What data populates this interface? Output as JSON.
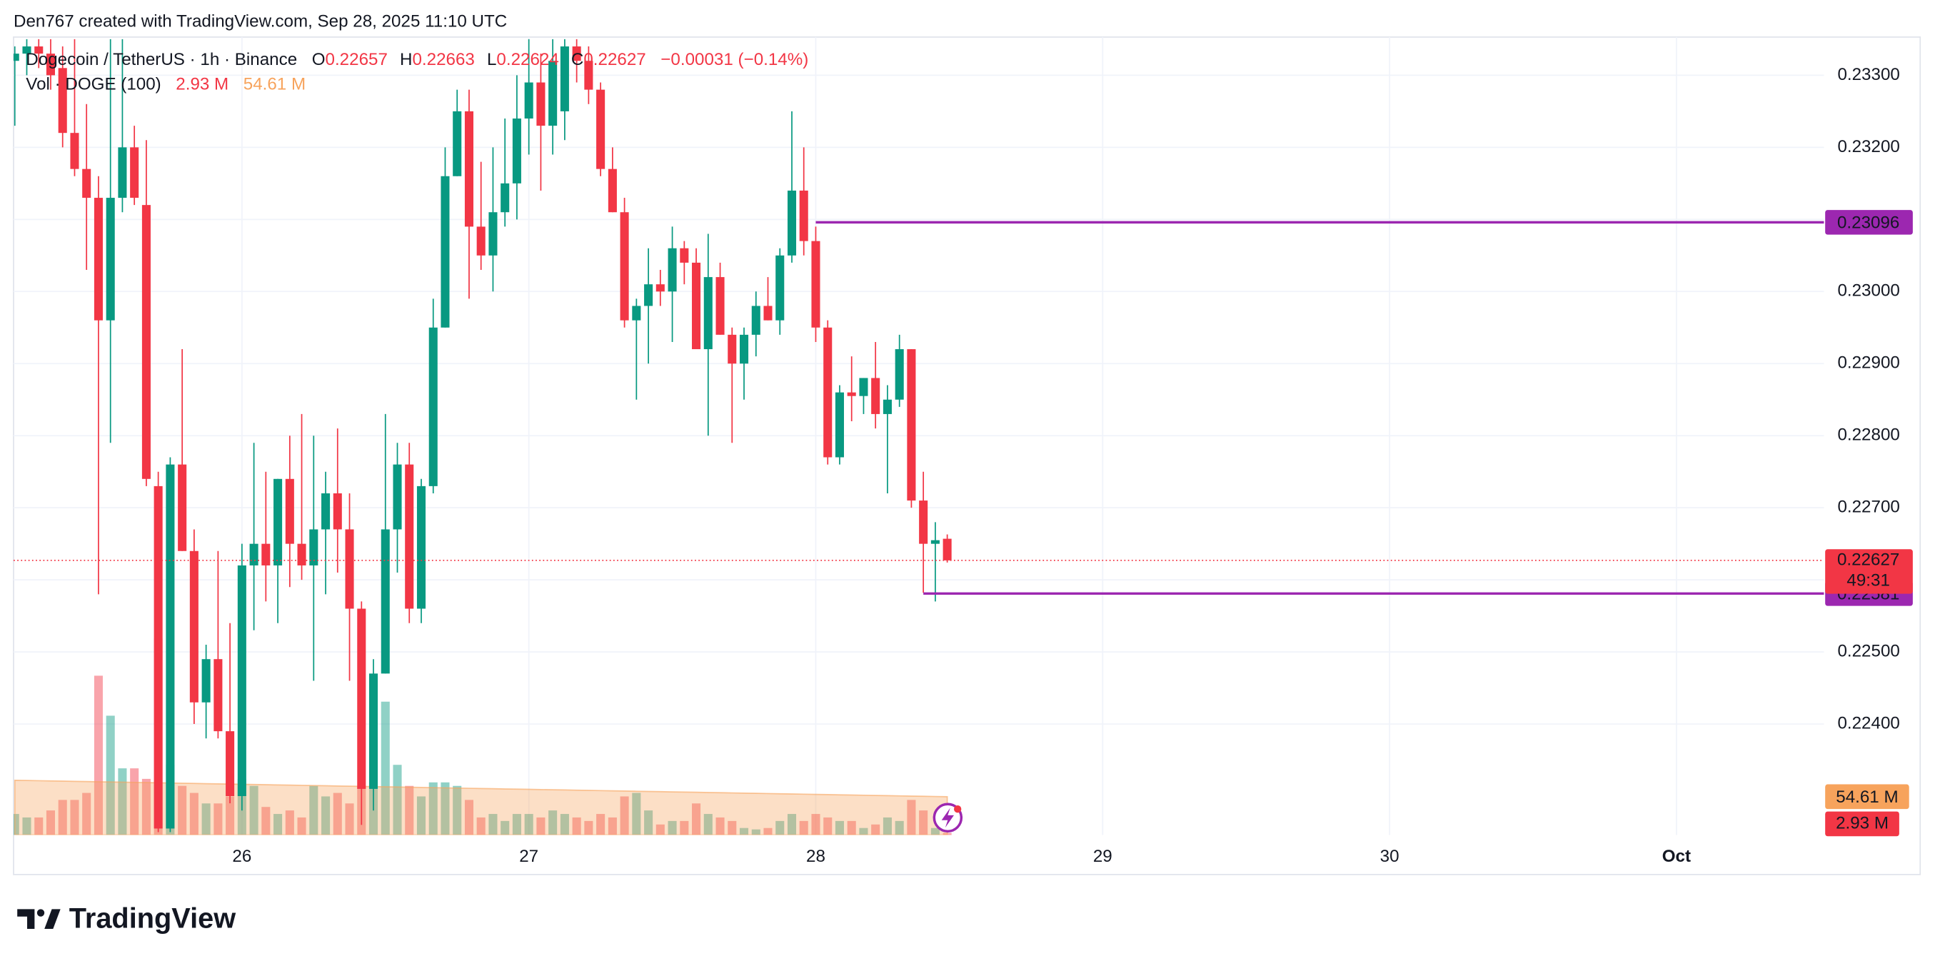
{
  "chart_data": {
    "type": "candlestick",
    "attribution": "Den767 created with TradingView.com, Sep 28, 2025 11:10 UTC",
    "title": "Dogecoin / TetherUS · 1h · Binance",
    "brand": "TradingView",
    "ohlc_labels": [
      "O",
      "H",
      "L",
      "C"
    ],
    "change": "−0.00031 (−0.14%)",
    "countdown": "49:31",
    "x": [
      25.2083,
      25.25,
      25.2917,
      25.3333,
      25.375,
      25.4167,
      25.4583,
      25.5,
      25.5417,
      25.5833,
      25.625,
      25.6667,
      25.7083,
      25.75,
      25.7917,
      25.8333,
      25.875,
      25.9167,
      25.9583,
      26,
      26.0417,
      26.0833,
      26.125,
      26.1667,
      26.2083,
      26.25,
      26.2917,
      26.3333,
      26.375,
      26.4167,
      26.4583,
      26.5,
      26.5417,
      26.5833,
      26.625,
      26.6667,
      26.7083,
      26.75,
      26.7917,
      26.8333,
      26.875,
      26.9167,
      26.9583,
      27,
      27.0417,
      27.0833,
      27.125,
      27.1667,
      27.2083,
      27.25,
      27.2917,
      27.3333,
      27.375,
      27.4167,
      27.4583,
      27.5,
      27.5417,
      27.5833,
      27.625,
      27.6667,
      27.7083,
      27.75,
      27.7917,
      27.8333,
      27.875,
      27.9167,
      27.9583,
      28,
      28.0417,
      28.0833,
      28.125,
      28.1667,
      28.2083,
      28.25,
      28.2917,
      28.3333,
      28.375,
      28.4167,
      28.4583
    ],
    "open": [
      0.2332,
      0.2333,
      0.2334,
      0.2333,
      0.2331,
      0.2322,
      0.2317,
      0.2313,
      0.2296,
      0.2313,
      0.232,
      0.2312,
      0.2273,
      0.22255,
      0.2276,
      0.2264,
      0.2243,
      0.2249,
      0.2239,
      0.223,
      0.2262,
      0.2265,
      0.2262,
      0.2274,
      0.2265,
      0.2262,
      0.2267,
      0.2272,
      0.2267,
      0.2256,
      0.2231,
      0.2247,
      0.2267,
      0.2276,
      0.2256,
      0.2273,
      0.2295,
      0.2316,
      0.2325,
      0.2309,
      0.2305,
      0.2311,
      0.2315,
      0.2324,
      0.2329,
      0.2323,
      0.2325,
      0.2334,
      0.2332,
      0.2328,
      0.2317,
      0.2311,
      0.2296,
      0.2298,
      0.2301,
      0.23,
      0.2306,
      0.2304,
      0.2292,
      0.2302,
      0.2294,
      0.229,
      0.2294,
      0.2298,
      0.2296,
      0.2305,
      0.2314,
      0.2307,
      0.2295,
      0.2277,
      0.2286,
      0.22855,
      0.2288,
      0.2283,
      0.2285,
      0.2292,
      0.2271,
      0.2265,
      0.22657
    ],
    "high": [
      0.2334,
      0.2335,
      0.2335,
      0.2335,
      0.2334,
      0.2335,
      0.2326,
      0.2316,
      0.2335,
      0.2335,
      0.2323,
      0.2321,
      0.2275,
      0.2277,
      0.2292,
      0.2267,
      0.2251,
      0.2264,
      0.2254,
      0.2265,
      0.2279,
      0.2275,
      0.2274,
      0.228,
      0.2283,
      0.228,
      0.2275,
      0.2281,
      0.2272,
      0.2257,
      0.2249,
      0.2283,
      0.2279,
      0.2279,
      0.2274,
      0.2299,
      0.232,
      0.2328,
      0.2328,
      0.2318,
      0.232,
      0.2324,
      0.233,
      0.2335,
      0.2333,
      0.2335,
      0.2335,
      0.2335,
      0.2334,
      0.2329,
      0.232,
      0.2313,
      0.2299,
      0.2306,
      0.2303,
      0.2309,
      0.2307,
      0.2306,
      0.2308,
      0.2304,
      0.2295,
      0.2295,
      0.23,
      0.2302,
      0.2306,
      0.2325,
      0.232,
      0.2309,
      0.2296,
      0.2287,
      0.2291,
      0.2288,
      0.2293,
      0.2287,
      0.2294,
      0.2292,
      0.2275,
      0.2268,
      0.22663
    ],
    "low": [
      0.2323,
      0.233,
      0.2331,
      0.2328,
      0.232,
      0.2316,
      0.2303,
      0.2258,
      0.2279,
      0.2311,
      0.2312,
      0.2273,
      0.2225,
      0.2225,
      0.2264,
      0.224,
      0.2238,
      0.2238,
      0.2229,
      0.2228,
      0.2253,
      0.2257,
      0.2254,
      0.2259,
      0.226,
      0.2246,
      0.2258,
      0.2261,
      0.2246,
      0.2226,
      0.2228,
      0.2247,
      0.2261,
      0.2254,
      0.2254,
      0.2272,
      0.2295,
      0.2316,
      0.2299,
      0.2303,
      0.23,
      0.2309,
      0.231,
      0.2319,
      0.2314,
      0.2319,
      0.2321,
      0.2329,
      0.2326,
      0.2316,
      0.2311,
      0.2295,
      0.2285,
      0.229,
      0.2298,
      0.2293,
      0.2301,
      0.2292,
      0.228,
      0.2294,
      0.2279,
      0.2285,
      0.2291,
      0.2296,
      0.2294,
      0.2304,
      0.2305,
      0.2293,
      0.2276,
      0.2276,
      0.2282,
      0.2283,
      0.2281,
      0.2272,
      0.2284,
      0.227,
      0.22582,
      0.2257,
      0.22624
    ],
    "close": [
      0.2333,
      0.2334,
      0.2333,
      0.233,
      0.2322,
      0.2317,
      0.2313,
      0.2296,
      0.2313,
      0.232,
      0.2313,
      0.2274,
      0.22255,
      0.2276,
      0.2264,
      0.2243,
      0.2249,
      0.2239,
      0.223,
      0.2262,
      0.2265,
      0.2262,
      0.2274,
      0.2265,
      0.2262,
      0.2267,
      0.2272,
      0.2267,
      0.2256,
      0.2231,
      0.2247,
      0.2267,
      0.2276,
      0.2256,
      0.2273,
      0.2295,
      0.2316,
      0.2325,
      0.2309,
      0.2305,
      0.2311,
      0.2315,
      0.2324,
      0.2329,
      0.2323,
      0.2332,
      0.2334,
      0.2332,
      0.2328,
      0.2317,
      0.2311,
      0.2296,
      0.2298,
      0.2301,
      0.23,
      0.2306,
      0.2304,
      0.2292,
      0.2302,
      0.2294,
      0.229,
      0.2294,
      0.2298,
      0.2296,
      0.2305,
      0.2314,
      0.2307,
      0.2295,
      0.2277,
      0.2286,
      0.22855,
      0.2288,
      0.2283,
      0.2285,
      0.2292,
      0.2271,
      0.2265,
      0.22655,
      0.22627
    ],
    "up_color": "#089981",
    "down_color": "#f23645",
    "xlim": [
      25.204,
      31.514
    ],
    "xticks": [
      26,
      27,
      28,
      29,
      30,
      {
        "value": 31,
        "label": "Oct"
      }
    ],
    "ylim": [
      0.22246,
      0.23353
    ],
    "yticks": [
      {
        "value": 0.224,
        "label": "0.22400"
      },
      {
        "value": 0.225,
        "label": "0.22500"
      },
      {
        "value": 0.226,
        "label": "0.22600"
      },
      {
        "value": 0.227,
        "label": "0.22700"
      },
      {
        "value": 0.228,
        "label": "0.22800"
      },
      {
        "value": 0.229,
        "label": "0.22900"
      },
      {
        "value": 0.23,
        "label": "0.23000"
      },
      {
        "value": 0.231,
        "label": "0.23100"
      },
      {
        "value": 0.232,
        "label": "0.23200"
      },
      {
        "value": 0.233,
        "label": "0.23300"
      }
    ],
    "grid": true,
    "hlines": [
      {
        "value": 0.23096,
        "start": 28,
        "color": "#9c27b0"
      },
      {
        "value": 0.22581,
        "start": 28.375,
        "color": "#9c27b0"
      }
    ],
    "volume": {
      "name": "Vol · DOGE (100)",
      "ylim": [
        0,
        1137
      ],
      "values": [
        30,
        25,
        25,
        35,
        50,
        50,
        60,
        227,
        170,
        95,
        95,
        80,
        280,
        100,
        70,
        60,
        45,
        45,
        55,
        80,
        70,
        40,
        30,
        35,
        25,
        70,
        55,
        60,
        45,
        70,
        140,
        190,
        100,
        70,
        55,
        75,
        75,
        70,
        50,
        25,
        30,
        20,
        30,
        30,
        25,
        35,
        30,
        25,
        20,
        30,
        25,
        55,
        60,
        35,
        15,
        20,
        20,
        45,
        30,
        25,
        20,
        10,
        8,
        10,
        20,
        30,
        20,
        30,
        25,
        20,
        20,
        10,
        15,
        25,
        20,
        50,
        35,
        10,
        2.93
      ],
      "last_value_label": "2.93 M",
      "ma": {
        "color": "#f7a35c",
        "values": [
          78,
          77.7,
          77.4,
          77.1,
          76.8,
          76.5,
          76.2,
          75.9,
          75.6,
          75.3,
          75,
          74.7,
          74.4,
          74.1,
          73.8,
          73.5,
          73.2,
          72.9,
          72.6,
          72.3,
          72,
          71.7,
          71.4,
          71.1,
          70.8,
          70.5,
          70.2,
          69.9,
          69.6,
          69.3,
          69,
          68.7,
          68.4,
          68.1,
          67.8,
          67.5,
          67.2,
          66.9,
          66.6,
          66.3,
          66,
          65.7,
          65.4,
          65.1,
          64.8,
          64.5,
          64.2,
          63.9,
          63.6,
          63.3,
          63,
          62.7,
          62.4,
          62.1,
          61.8,
          61.5,
          61.2,
          60.9,
          60.6,
          60.3,
          60,
          59.7,
          59.4,
          59.1,
          58.8,
          58.5,
          58.2,
          57.9,
          57.6,
          57.3,
          57,
          56.7,
          56.4,
          56.1,
          55.8,
          55.5,
          55.2,
          54.9,
          54.61
        ],
        "last_value_label": "54.61 M"
      }
    }
  }
}
